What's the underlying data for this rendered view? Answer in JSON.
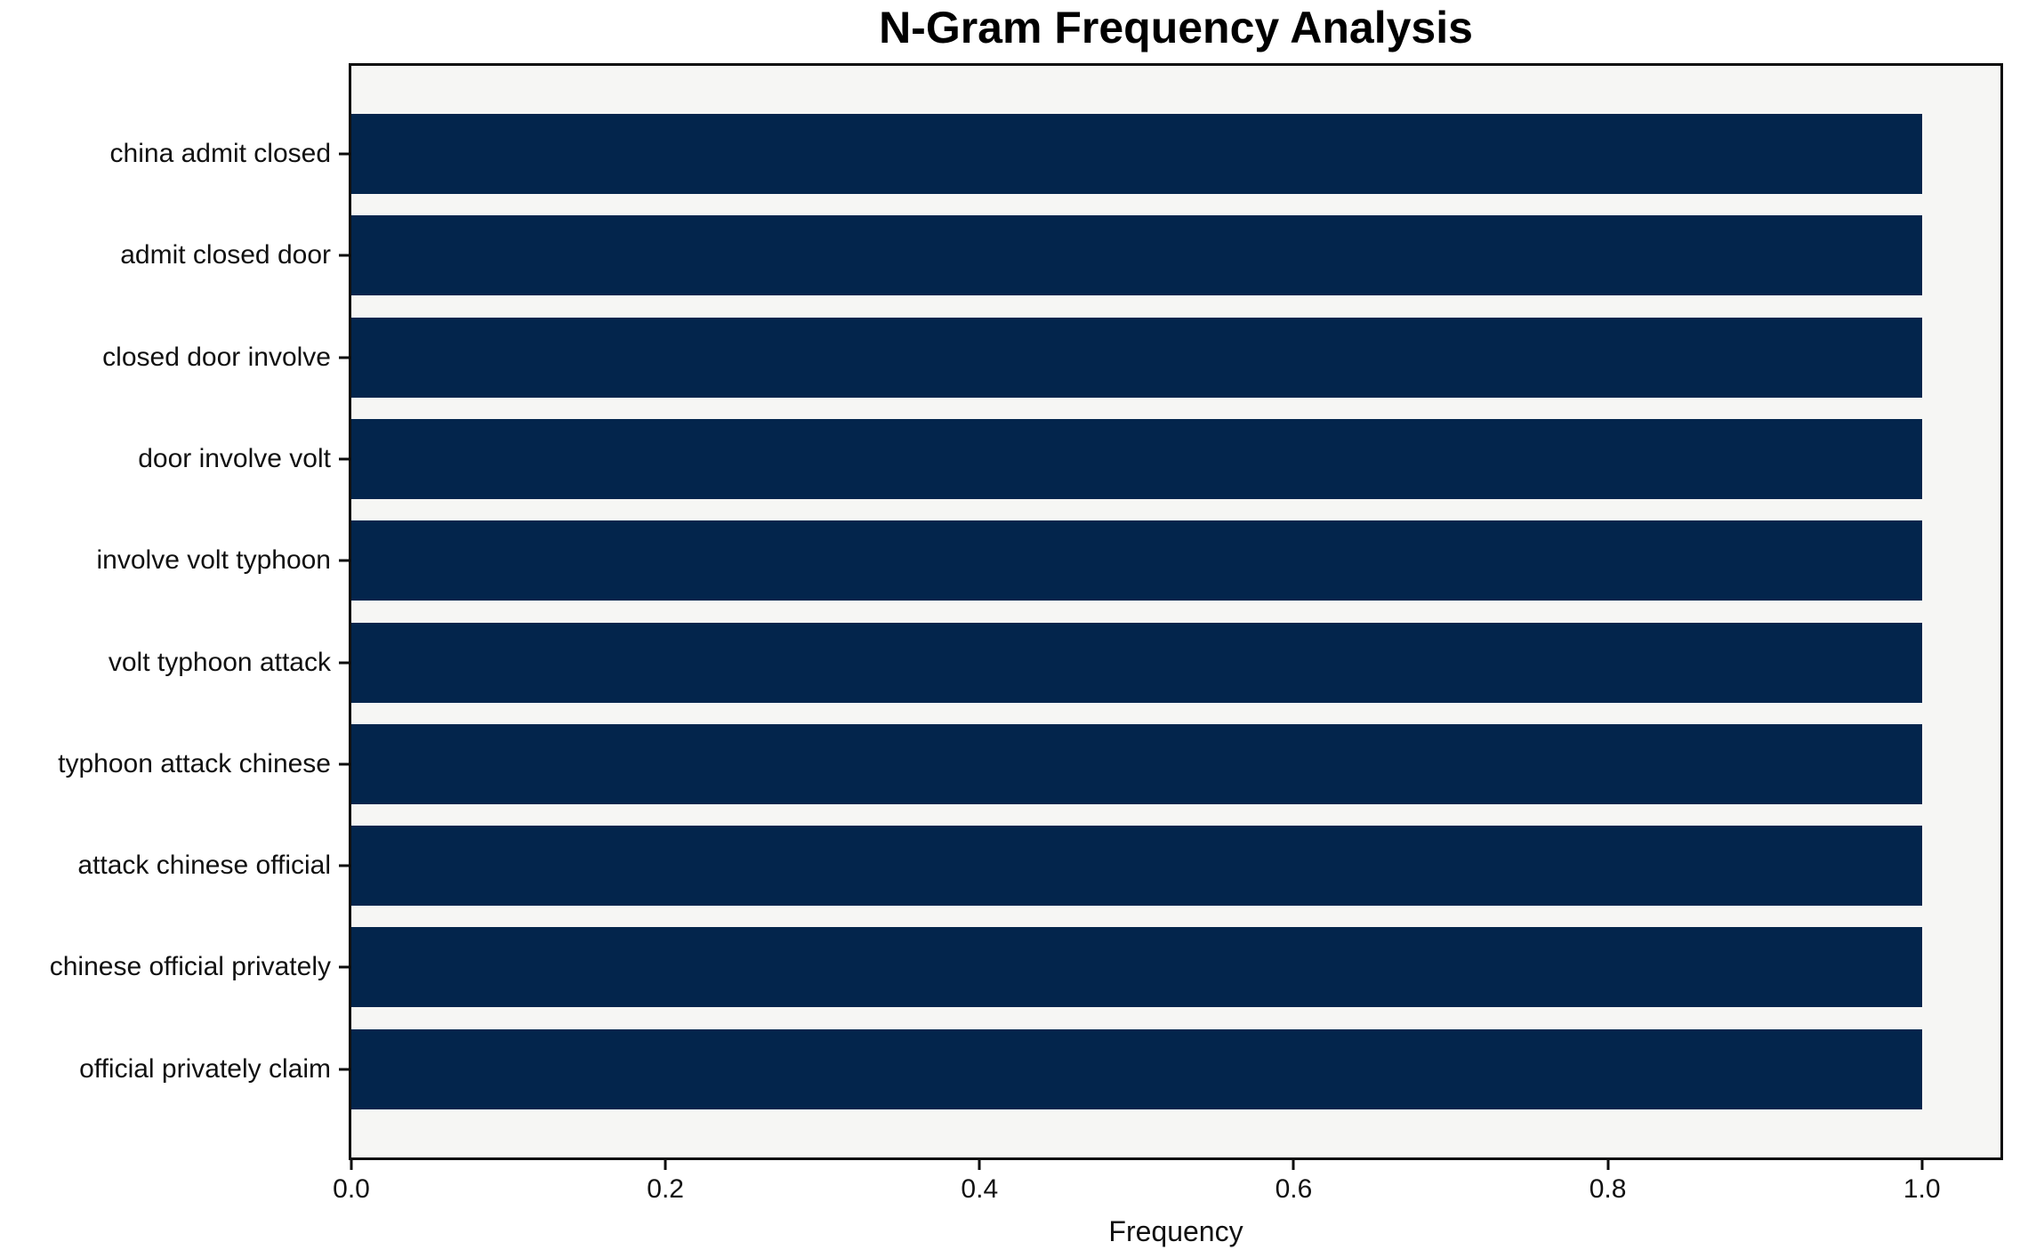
{
  "title": "N-Gram Frequency Analysis",
  "chart_data": {
    "type": "bar",
    "orientation": "horizontal",
    "title": "N-Gram Frequency Analysis",
    "xlabel": "Frequency",
    "ylabel": "",
    "categories": [
      "china admit closed",
      "admit closed door",
      "closed door involve",
      "door involve volt",
      "involve volt typhoon",
      "volt typhoon attack",
      "typhoon attack chinese",
      "attack chinese official",
      "chinese official privately",
      "official privately claim"
    ],
    "values": [
      1.0,
      1.0,
      1.0,
      1.0,
      1.0,
      1.0,
      1.0,
      1.0,
      1.0,
      1.0
    ],
    "xlim": [
      0,
      1.05
    ],
    "xticks": [
      0.0,
      0.2,
      0.4,
      0.6,
      0.8,
      1.0
    ],
    "grid": false,
    "legend": null,
    "colors": {
      "bar": "#03254c",
      "plot_background": "#f6f6f4",
      "figure_background": "#ffffff",
      "spine": "#0d0d0d"
    }
  }
}
